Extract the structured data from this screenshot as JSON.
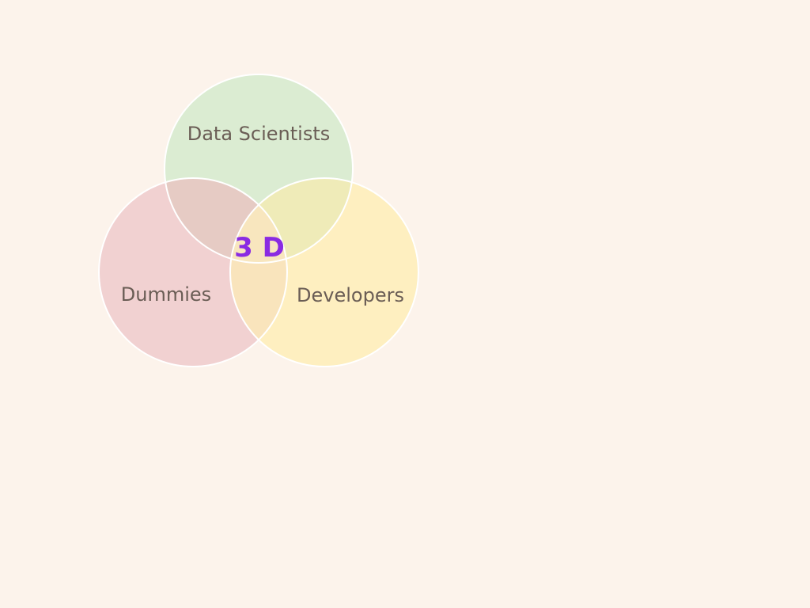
{
  "colors": {
    "background": "#fcf3eb",
    "circle_outline": "#ffffff",
    "data_scientists_fill": "#dbecd2",
    "dummies_fill": "#f1d1d1",
    "developers_fill": "#feefc0",
    "label_text": "#6a5d55",
    "center_label": "#8a2be2"
  },
  "venn": {
    "sets": [
      {
        "id": "data-scientists",
        "label": "Data Scientists"
      },
      {
        "id": "dummies",
        "label": "Dummies"
      },
      {
        "id": "developers",
        "label": "Developers"
      }
    ],
    "center_label": "3 D"
  }
}
